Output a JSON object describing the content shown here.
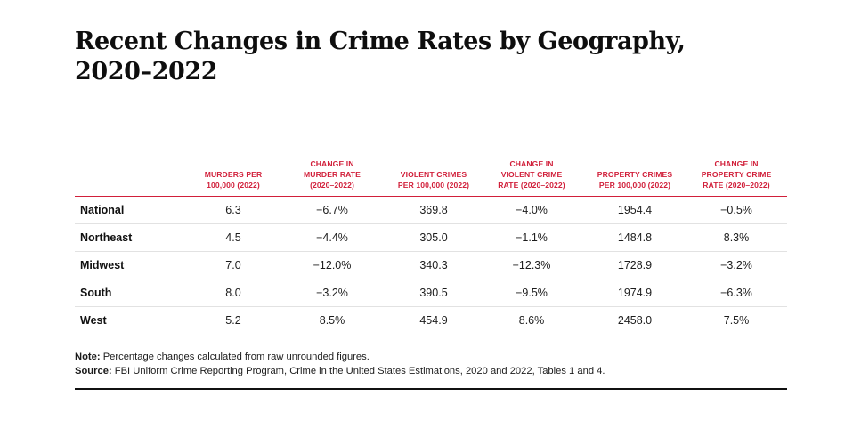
{
  "title": {
    "line1": "Recent Changes in Crime Rates by Geography,",
    "line2": "2020–2022"
  },
  "table": {
    "headers": [
      {
        "line1": "",
        "line2": "",
        "line3": ""
      },
      {
        "line1": "",
        "line2": "MURDERS PER",
        "line3": "100,000 (2022)"
      },
      {
        "line1": "CHANGE IN",
        "line2": "MURDER RATE",
        "line3": "(2020–2022)"
      },
      {
        "line1": "",
        "line2": "VIOLENT CRIMES",
        "line3": "PER 100,000 (2022)"
      },
      {
        "line1": "CHANGE IN",
        "line2": "VIOLENT CRIME",
        "line3": "RATE (2020–2022)"
      },
      {
        "line1": "",
        "line2": "PROPERTY CRIMES",
        "line3": "PER 100,000 (2022)"
      },
      {
        "line1": "CHANGE IN",
        "line2": "PROPERTY CRIME",
        "line3": "RATE (2020–2022)"
      }
    ],
    "rows": [
      {
        "geography": "National",
        "murders": "6.3",
        "murder_change": "−6.7%",
        "violent": "369.8",
        "violent_change": "−4.0%",
        "property": "1954.4",
        "property_change": "−0.5%"
      },
      {
        "geography": "Northeast",
        "murders": "4.5",
        "murder_change": "−4.4%",
        "violent": "305.0",
        "violent_change": "−1.1%",
        "property": "1484.8",
        "property_change": "8.3%"
      },
      {
        "geography": "Midwest",
        "murders": "7.0",
        "murder_change": "−12.0%",
        "violent": "340.3",
        "violent_change": "−12.3%",
        "property": "1728.9",
        "property_change": "−3.2%"
      },
      {
        "geography": "South",
        "murders": "8.0",
        "murder_change": "−3.2%",
        "violent": "390.5",
        "violent_change": "−9.5%",
        "property": "1974.9",
        "property_change": "−6.3%"
      },
      {
        "geography": "West",
        "murders": "5.2",
        "murder_change": "8.5%",
        "violent": "454.9",
        "violent_change": "8.6%",
        "property": "2458.0",
        "property_change": "7.5%"
      }
    ]
  },
  "notes": {
    "note_label": "Note:",
    "note_text": " Percentage changes calculated from raw unrounded figures.",
    "source_label": "Source:",
    "source_text": " FBI Uniform Crime Reporting Program, Crime in the United States Estimations, 2020 and 2022, Tables 1 and 4."
  },
  "colors": {
    "header_accent": "#d11f3a",
    "text": "#111111",
    "row_divider": "#e2e2e2"
  }
}
